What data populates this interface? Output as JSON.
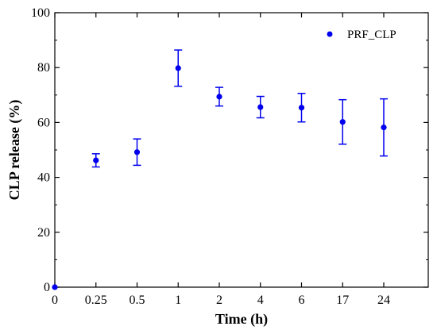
{
  "chart_data": {
    "type": "scatter",
    "xlabel": "Time (h)",
    "ylabel": "CLP release (%)",
    "ylim": [
      0,
      100
    ],
    "yticks": [
      0,
      20,
      40,
      60,
      80,
      100
    ],
    "x_scale": "categorical",
    "categories": [
      "0",
      "0.25",
      "0.5",
      "1",
      "2",
      "4",
      "6",
      "17",
      "24"
    ],
    "legend_position": "top-right",
    "grid": false,
    "series": [
      {
        "name": "PRF_CLP",
        "color": "#0000ee",
        "values": [
          0,
          46.2,
          49.2,
          79.8,
          69.4,
          65.6,
          65.4,
          60.2,
          58.2
        ],
        "errors": [
          0,
          2.4,
          4.8,
          6.6,
          3.4,
          3.9,
          5.2,
          8.1,
          10.4
        ]
      }
    ]
  }
}
